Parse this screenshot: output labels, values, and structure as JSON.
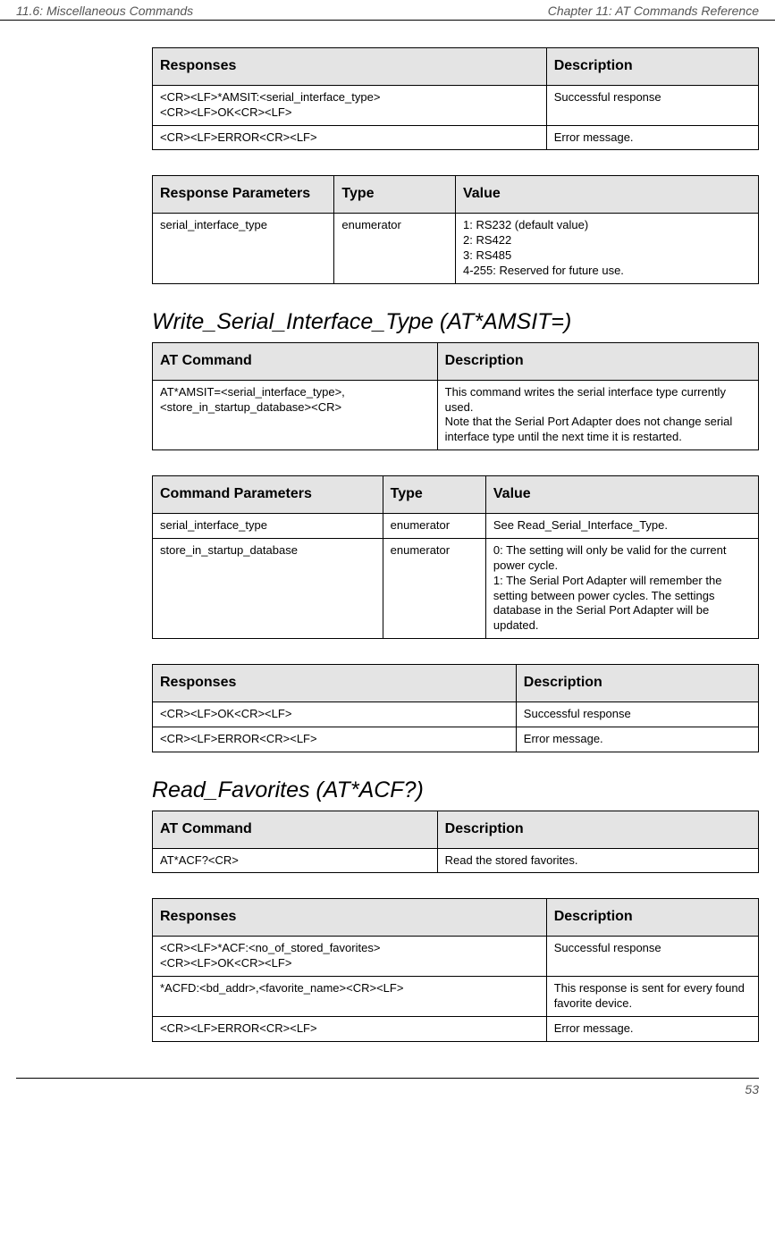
{
  "header": {
    "left": "11.6: Miscellaneous Commands",
    "right": "Chapter 11: AT Commands Reference"
  },
  "page_number": "53",
  "table1": {
    "h1": "Responses",
    "h2": "Description",
    "r1c1": "<CR><LF>*AMSIT:<serial_interface_type>\n<CR><LF>OK<CR><LF>",
    "r1c2": "Successful response",
    "r2c1": "<CR><LF>ERROR<CR><LF>",
    "r2c2": "Error message."
  },
  "table2": {
    "h1": "Response Parameters",
    "h2": "Type",
    "h3": "Value",
    "r1c1": "serial_interface_type",
    "r1c2": "enumerator",
    "r1c3": "1: RS232 (default value)\n2: RS422\n3: RS485\n4-255: Reserved for future use."
  },
  "heading1": "Write_Serial_Interface_Type (AT*AMSIT=)",
  "table3": {
    "h1": "AT Command",
    "h2": "Description",
    "r1c1": "AT*AMSIT=<serial_interface_type>,\n<store_in_startup_database><CR>",
    "r1c2": "This command writes the serial interface type currently used.\nNote that the Serial Port Adapter does not change serial interface type until the next time it is restarted."
  },
  "table4": {
    "h1": "Command Parameters",
    "h2": "Type",
    "h3": "Value",
    "r1c1": "serial_interface_type",
    "r1c2": "enumerator",
    "r1c3": "See Read_Serial_Interface_Type.",
    "r2c1": "store_in_startup_database",
    "r2c2": "enumerator",
    "r2c3": "0: The setting will only be valid for the current power cycle.\n1: The Serial Port Adapter will remember the setting between power cycles. The settings database in the Serial Port Adapter will be updated."
  },
  "table5": {
    "h1": "Responses",
    "h2": "Description",
    "r1c1": "<CR><LF>OK<CR><LF>",
    "r1c2": "Successful response",
    "r2c1": "<CR><LF>ERROR<CR><LF>",
    "r2c2": "Error message."
  },
  "heading2": "Read_Favorites (AT*ACF?)",
  "table6": {
    "h1": "AT Command",
    "h2": "Description",
    "r1c1": "AT*ACF?<CR>",
    "r1c2": "Read the stored favorites."
  },
  "table7": {
    "h1": "Responses",
    "h2": "Description",
    "r1c1": "<CR><LF>*ACF:<no_of_stored_favorites>\n<CR><LF>OK<CR><LF>",
    "r1c2": "Successful response",
    "r2c1": "*ACFD:<bd_addr>,<favorite_name><CR><LF>",
    "r2c2": "This response is sent for every found favorite device.",
    "r3c1": "<CR><LF>ERROR<CR><LF>",
    "r3c2": "Error message."
  }
}
